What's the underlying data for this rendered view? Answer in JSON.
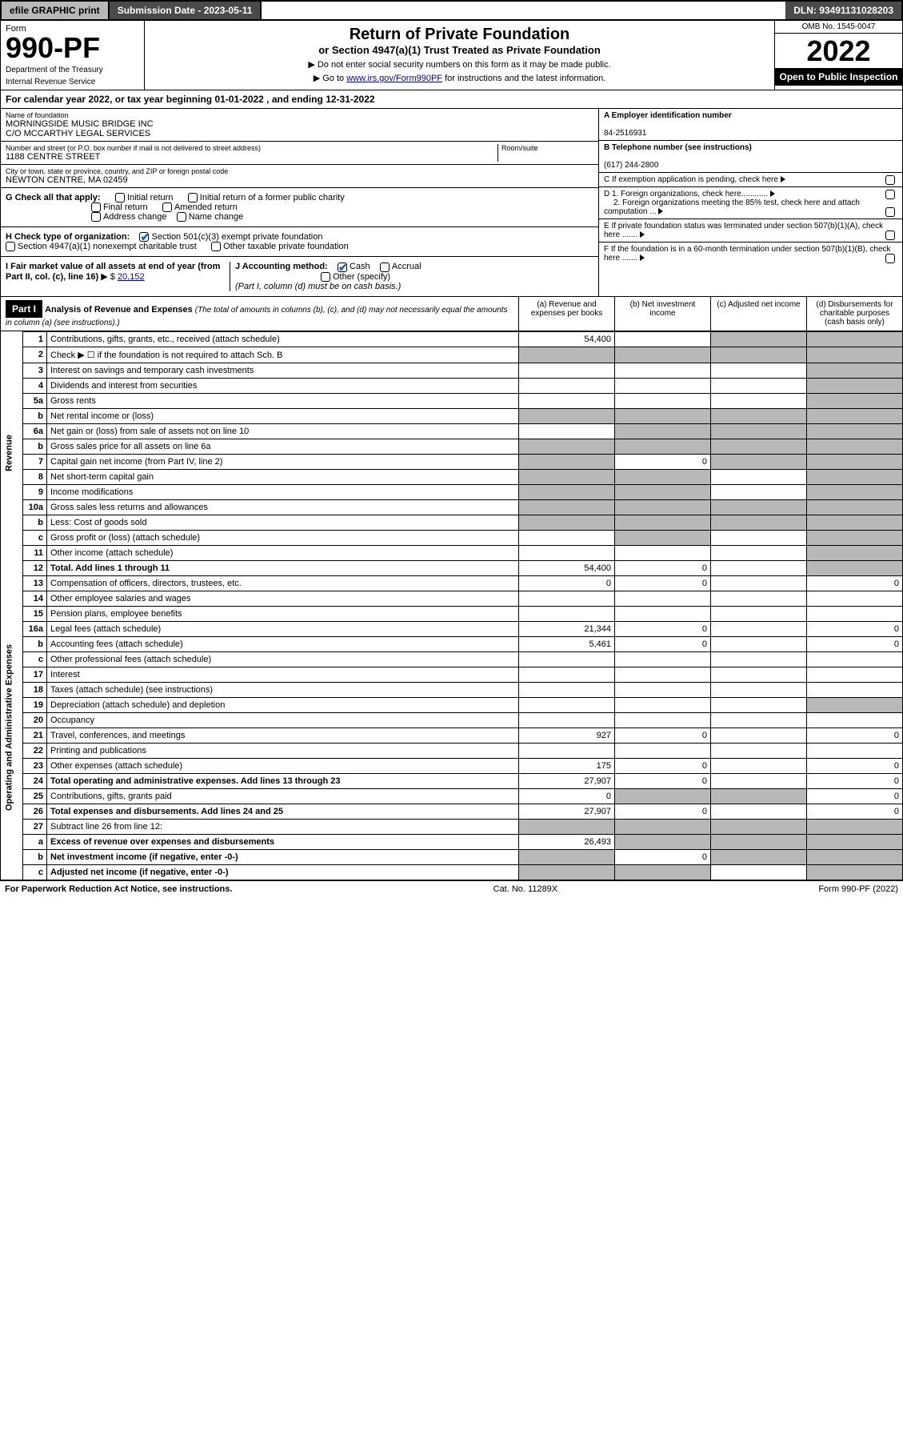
{
  "topbar": {
    "efile": "efile GRAPHIC print",
    "submission_label": "Submission Date - 2023-05-11",
    "dln": "DLN: 93491131028203"
  },
  "header": {
    "form_label": "Form",
    "form_number": "990-PF",
    "dept1": "Department of the Treasury",
    "dept2": "Internal Revenue Service",
    "title": "Return of Private Foundation",
    "subtitle": "or Section 4947(a)(1) Trust Treated as Private Foundation",
    "instr1": "▶ Do not enter social security numbers on this form as it may be made public.",
    "instr2_pre": "▶ Go to ",
    "instr2_link": "www.irs.gov/Form990PF",
    "instr2_post": " for instructions and the latest information.",
    "omb": "OMB No. 1545-0047",
    "year": "2022",
    "open_public": "Open to Public Inspection"
  },
  "cal_year": {
    "text_pre": "For calendar year 2022, or tax year beginning ",
    "begin": "01-01-2022",
    "mid": " , and ending ",
    "end": "12-31-2022"
  },
  "entity": {
    "name_label": "Name of foundation",
    "name1": "MORNINGSIDE MUSIC BRIDGE INC",
    "name2": "C/O MCCARTHY LEGAL SERVICES",
    "addr_label": "Number and street (or P.O. box number if mail is not delivered to street address)",
    "addr": "1188 CENTRE STREET",
    "room_label": "Room/suite",
    "room": "",
    "city_label": "City or town, state or province, country, and ZIP or foreign postal code",
    "city": "NEWTON CENTRE, MA  02459",
    "a_label": "A Employer identification number",
    "a_val": "84-2516931",
    "b_label": "B Telephone number (see instructions)",
    "b_val": "(617) 244-2800",
    "c_label": "C If exemption application is pending, check here",
    "d1": "D 1. Foreign organizations, check here............",
    "d2": "2. Foreign organizations meeting the 85% test, check here and attach computation ...",
    "e": "E  If private foundation status was terminated under section 507(b)(1)(A), check here .......",
    "f": "F  If the foundation is in a 60-month termination under section 507(b)(1)(B), check here .......",
    "g_label": "G Check all that apply:",
    "g_opts": [
      "Initial return",
      "Initial return of a former public charity",
      "Final return",
      "Amended return",
      "Address change",
      "Name change"
    ],
    "h_label": "H Check type of organization:",
    "h_opts": [
      "Section 501(c)(3) exempt private foundation",
      "Section 4947(a)(1) nonexempt charitable trust",
      "Other taxable private foundation"
    ],
    "i_label": "I Fair market value of all assets at end of year (from Part II, col. (c), line 16)",
    "i_val": "20,152",
    "i_prefix": "▶ $",
    "j_label": "J Accounting method:",
    "j_opts": [
      "Cash",
      "Accrual",
      "Other (specify)"
    ],
    "j_note": "(Part I, column (d) must be on cash basis.)"
  },
  "part1": {
    "label": "Part I",
    "title": "Analysis of Revenue and Expenses",
    "note": "(The total of amounts in columns (b), (c), and (d) may not necessarily equal the amounts in column (a) (see instructions).)",
    "cols": {
      "a": "(a)  Revenue and expenses per books",
      "b": "(b)  Net investment income",
      "c": "(c)  Adjusted net income",
      "d": "(d)  Disbursements for charitable purposes (cash basis only)"
    }
  },
  "sides": {
    "revenue": "Revenue",
    "opex": "Operating and Administrative Expenses"
  },
  "rows": [
    {
      "ln": "1",
      "desc": "Contributions, gifts, grants, etc., received (attach schedule)",
      "a": "54,400",
      "b": "",
      "c": "",
      "d": "",
      "shade_c": true,
      "shade_d": true
    },
    {
      "ln": "2",
      "desc": "Check ▶ ☐ if the foundation is not required to attach Sch. B",
      "a": "",
      "b": "",
      "c": "",
      "d": "",
      "shade_a": true,
      "shade_b": true,
      "shade_c": true,
      "shade_d": true
    },
    {
      "ln": "3",
      "desc": "Interest on savings and temporary cash investments",
      "a": "",
      "b": "",
      "c": "",
      "d": "",
      "shade_d": true
    },
    {
      "ln": "4",
      "desc": "Dividends and interest from securities",
      "a": "",
      "b": "",
      "c": "",
      "d": "",
      "shade_d": true
    },
    {
      "ln": "5a",
      "desc": "Gross rents",
      "a": "",
      "b": "",
      "c": "",
      "d": "",
      "shade_d": true
    },
    {
      "ln": "b",
      "desc": "Net rental income or (loss)",
      "a": "",
      "b": "",
      "c": "",
      "d": "",
      "shade_a": true,
      "shade_b": true,
      "shade_c": true,
      "shade_d": true
    },
    {
      "ln": "6a",
      "desc": "Net gain or (loss) from sale of assets not on line 10",
      "a": "",
      "b": "",
      "c": "",
      "d": "",
      "shade_b": true,
      "shade_c": true,
      "shade_d": true
    },
    {
      "ln": "b",
      "desc": "Gross sales price for all assets on line 6a",
      "a": "",
      "b": "",
      "c": "",
      "d": "",
      "shade_a": true,
      "shade_b": true,
      "shade_c": true,
      "shade_d": true
    },
    {
      "ln": "7",
      "desc": "Capital gain net income (from Part IV, line 2)",
      "a": "",
      "b": "0",
      "c": "",
      "d": "",
      "shade_a": true,
      "shade_c": true,
      "shade_d": true
    },
    {
      "ln": "8",
      "desc": "Net short-term capital gain",
      "a": "",
      "b": "",
      "c": "",
      "d": "",
      "shade_a": true,
      "shade_b": true,
      "shade_d": true
    },
    {
      "ln": "9",
      "desc": "Income modifications",
      "a": "",
      "b": "",
      "c": "",
      "d": "",
      "shade_a": true,
      "shade_b": true,
      "shade_d": true
    },
    {
      "ln": "10a",
      "desc": "Gross sales less returns and allowances",
      "a": "",
      "b": "",
      "c": "",
      "d": "",
      "shade_a": true,
      "shade_b": true,
      "shade_c": true,
      "shade_d": true
    },
    {
      "ln": "b",
      "desc": "Less: Cost of goods sold",
      "a": "",
      "b": "",
      "c": "",
      "d": "",
      "shade_a": true,
      "shade_b": true,
      "shade_c": true,
      "shade_d": true
    },
    {
      "ln": "c",
      "desc": "Gross profit or (loss) (attach schedule)",
      "a": "",
      "b": "",
      "c": "",
      "d": "",
      "shade_b": true,
      "shade_d": true
    },
    {
      "ln": "11",
      "desc": "Other income (attach schedule)",
      "a": "",
      "b": "",
      "c": "",
      "d": "",
      "shade_d": true
    },
    {
      "ln": "12",
      "desc": "Total. Add lines 1 through 11",
      "a": "54,400",
      "b": "0",
      "c": "",
      "d": "",
      "shade_d": true,
      "bold": true
    },
    {
      "ln": "13",
      "desc": "Compensation of officers, directors, trustees, etc.",
      "a": "0",
      "b": "0",
      "c": "",
      "d": "0"
    },
    {
      "ln": "14",
      "desc": "Other employee salaries and wages",
      "a": "",
      "b": "",
      "c": "",
      "d": ""
    },
    {
      "ln": "15",
      "desc": "Pension plans, employee benefits",
      "a": "",
      "b": "",
      "c": "",
      "d": ""
    },
    {
      "ln": "16a",
      "desc": "Legal fees (attach schedule)",
      "a": "21,344",
      "b": "0",
      "c": "",
      "d": "0"
    },
    {
      "ln": "b",
      "desc": "Accounting fees (attach schedule)",
      "a": "5,461",
      "b": "0",
      "c": "",
      "d": "0"
    },
    {
      "ln": "c",
      "desc": "Other professional fees (attach schedule)",
      "a": "",
      "b": "",
      "c": "",
      "d": ""
    },
    {
      "ln": "17",
      "desc": "Interest",
      "a": "",
      "b": "",
      "c": "",
      "d": ""
    },
    {
      "ln": "18",
      "desc": "Taxes (attach schedule) (see instructions)",
      "a": "",
      "b": "",
      "c": "",
      "d": ""
    },
    {
      "ln": "19",
      "desc": "Depreciation (attach schedule) and depletion",
      "a": "",
      "b": "",
      "c": "",
      "d": "",
      "shade_d": true
    },
    {
      "ln": "20",
      "desc": "Occupancy",
      "a": "",
      "b": "",
      "c": "",
      "d": ""
    },
    {
      "ln": "21",
      "desc": "Travel, conferences, and meetings",
      "a": "927",
      "b": "0",
      "c": "",
      "d": "0"
    },
    {
      "ln": "22",
      "desc": "Printing and publications",
      "a": "",
      "b": "",
      "c": "",
      "d": ""
    },
    {
      "ln": "23",
      "desc": "Other expenses (attach schedule)",
      "a": "175",
      "b": "0",
      "c": "",
      "d": "0"
    },
    {
      "ln": "24",
      "desc": "Total operating and administrative expenses. Add lines 13 through 23",
      "a": "27,907",
      "b": "0",
      "c": "",
      "d": "0",
      "bold": true
    },
    {
      "ln": "25",
      "desc": "Contributions, gifts, grants paid",
      "a": "0",
      "b": "",
      "c": "",
      "d": "0",
      "shade_b": true,
      "shade_c": true
    },
    {
      "ln": "26",
      "desc": "Total expenses and disbursements. Add lines 24 and 25",
      "a": "27,907",
      "b": "0",
      "c": "",
      "d": "0",
      "bold": true
    },
    {
      "ln": "27",
      "desc": "Subtract line 26 from line 12:",
      "a": "",
      "b": "",
      "c": "",
      "d": "",
      "shade_a": true,
      "shade_b": true,
      "shade_c": true,
      "shade_d": true
    },
    {
      "ln": "a",
      "desc": "Excess of revenue over expenses and disbursements",
      "a": "26,493",
      "b": "",
      "c": "",
      "d": "",
      "shade_b": true,
      "shade_c": true,
      "shade_d": true,
      "bold": true
    },
    {
      "ln": "b",
      "desc": "Net investment income (if negative, enter -0-)",
      "a": "",
      "b": "0",
      "c": "",
      "d": "",
      "shade_a": true,
      "shade_c": true,
      "shade_d": true,
      "bold": true
    },
    {
      "ln": "c",
      "desc": "Adjusted net income (if negative, enter -0-)",
      "a": "",
      "b": "",
      "c": "",
      "d": "",
      "shade_a": true,
      "shade_b": true,
      "shade_d": true,
      "bold": true
    }
  ],
  "footer": {
    "left": "For Paperwork Reduction Act Notice, see instructions.",
    "mid": "Cat. No. 11289X",
    "right": "Form 990-PF (2022)"
  }
}
